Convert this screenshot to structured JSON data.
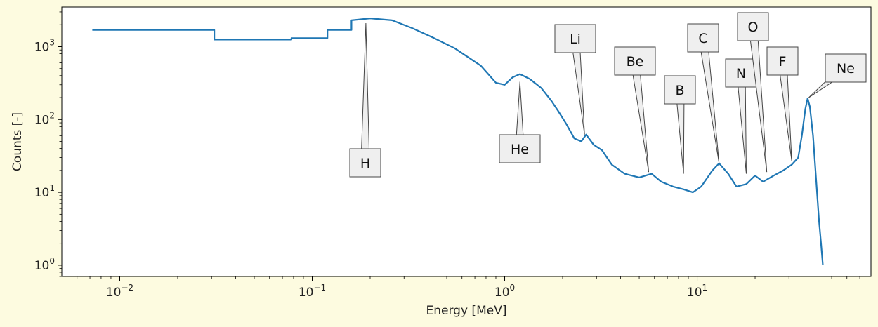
{
  "chart_data": {
    "type": "line",
    "title": "",
    "xlabel": "Energy [MeV]",
    "ylabel": "Counts [-]",
    "xscale": "log",
    "yscale": "log",
    "xlim": [
      0.005,
      80
    ],
    "ylim": [
      0.7,
      3500
    ],
    "grid": false,
    "line_color": "#1f77b4",
    "x_tick_values": [
      0.01,
      0.1,
      1,
      10
    ],
    "x_tick_labels": [
      {
        "base": "10",
        "exp": "−2"
      },
      {
        "base": "10",
        "exp": "−1"
      },
      {
        "base": "10",
        "exp": "0"
      },
      {
        "base": "10",
        "exp": "1"
      }
    ],
    "y_tick_values": [
      1,
      10,
      100,
      1000
    ],
    "y_tick_labels": [
      {
        "base": "10",
        "exp": "0"
      },
      {
        "base": "10",
        "exp": "1"
      },
      {
        "base": "10",
        "exp": "2"
      },
      {
        "base": "10",
        "exp": "3"
      }
    ],
    "series": [
      {
        "values": [
          [
            0.0072,
            1700
          ],
          [
            0.031,
            1700
          ],
          [
            0.031,
            1250
          ],
          [
            0.078,
            1250
          ],
          [
            0.078,
            1310
          ],
          [
            0.12,
            1310
          ],
          [
            0.12,
            1700
          ],
          [
            0.16,
            1700
          ],
          [
            0.16,
            2300
          ],
          [
            0.2,
            2450
          ],
          [
            0.26,
            2300
          ],
          [
            0.33,
            1800
          ],
          [
            0.42,
            1350
          ],
          [
            0.55,
            950
          ],
          [
            0.75,
            550
          ],
          [
            0.9,
            320
          ],
          [
            1.0,
            300
          ],
          [
            1.1,
            380
          ],
          [
            1.2,
            420
          ],
          [
            1.35,
            360
          ],
          [
            1.55,
            270
          ],
          [
            1.75,
            180
          ],
          [
            1.9,
            130
          ],
          [
            2.1,
            85
          ],
          [
            2.3,
            55
          ],
          [
            2.5,
            50
          ],
          [
            2.65,
            62
          ],
          [
            2.9,
            45
          ],
          [
            3.2,
            38
          ],
          [
            3.6,
            24
          ],
          [
            4.2,
            18
          ],
          [
            5.0,
            16
          ],
          [
            5.8,
            18
          ],
          [
            6.5,
            14
          ],
          [
            7.5,
            12
          ],
          [
            8.5,
            11
          ],
          [
            9.5,
            10
          ],
          [
            10.5,
            12
          ],
          [
            12,
            20
          ],
          [
            13,
            25
          ],
          [
            14.5,
            18
          ],
          [
            16,
            12
          ],
          [
            18,
            13
          ],
          [
            20,
            17
          ],
          [
            22,
            14
          ],
          [
            25,
            17
          ],
          [
            28,
            20
          ],
          [
            31,
            24
          ],
          [
            33.5,
            30
          ],
          [
            35,
            60
          ],
          [
            36.5,
            140
          ],
          [
            37.5,
            195
          ],
          [
            38.5,
            150
          ],
          [
            40,
            60
          ],
          [
            41.5,
            15
          ],
          [
            43,
            4
          ],
          [
            44,
            2
          ],
          [
            45,
            1
          ]
        ]
      }
    ],
    "annotations": [
      {
        "label": "H",
        "x": 0.19,
        "y": 2100
      },
      {
        "label": "He",
        "x": 1.2,
        "y": 330
      },
      {
        "label": "Li",
        "x": 2.6,
        "y": 62
      },
      {
        "label": "Be",
        "x": 5.6,
        "y": 19
      },
      {
        "label": "B",
        "x": 8.5,
        "y": 18
      },
      {
        "label": "C",
        "x": 13,
        "y": 25
      },
      {
        "label": "N",
        "x": 18,
        "y": 18
      },
      {
        "label": "O",
        "x": 23,
        "y": 19
      },
      {
        "label": "F",
        "x": 31,
        "y": 27
      },
      {
        "label": "Ne",
        "x": 38,
        "y": 200
      }
    ]
  }
}
